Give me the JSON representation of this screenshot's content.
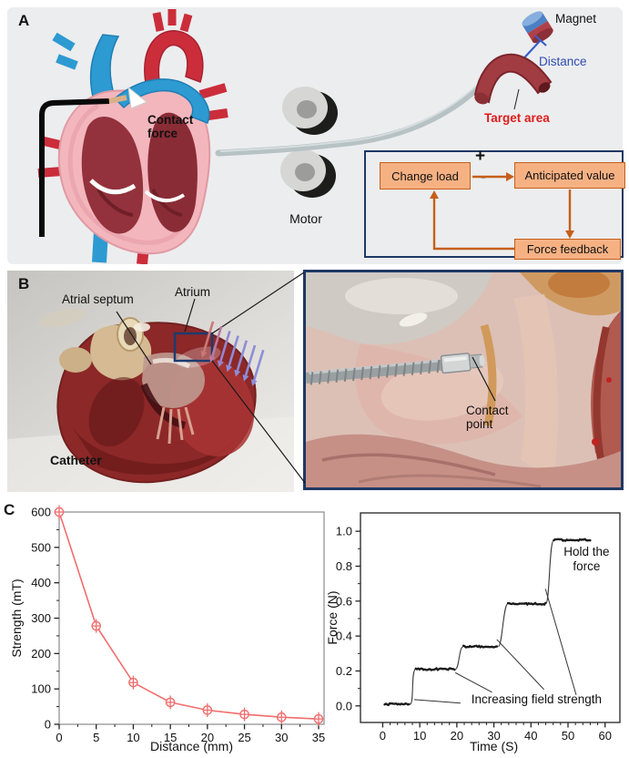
{
  "panels": {
    "a": {
      "label": "A",
      "bg": "#ecedef",
      "contact_force": "Contact\nforce",
      "motor": "Motor",
      "magnet": "Magnet",
      "distance": "Distance",
      "target_area": "Target area",
      "text_blue": "#2e4bb0",
      "text_red": "#e01b1b",
      "flowchart": {
        "change_load": "Change load",
        "plus": "+",
        "minus": "-",
        "anticipated": "Anticipated value",
        "feedback": "Force feedback",
        "box_fill": "#f6b183",
        "box_border": "#c55f1a",
        "frame_border": "#1f3864"
      }
    },
    "b": {
      "label": "B",
      "atrial_septum": "Atrial septum",
      "atrium": "Atrium",
      "catheter": "Catheter",
      "contact_point": "Contact\npoint",
      "highlight_box_color": "#1e3a6e",
      "field_arrows": {
        "count": 7,
        "colors": [
          "#cb7878",
          "#bb7a9e",
          "#9486cf",
          "#8d8dd8",
          "#8d8dd8",
          "#8d8dd8",
          "#8d8dd8"
        ]
      }
    },
    "c": {
      "label": "C"
    }
  },
  "chart_data": [
    {
      "type": "line",
      "xlabel": "Distance (mm)",
      "ylabel": "Strength (mT)",
      "x": [
        0,
        5,
        10,
        15,
        20,
        25,
        30,
        35
      ],
      "y": [
        600,
        278,
        118,
        62,
        40,
        28,
        20,
        15
      ],
      "yerr": [
        15,
        12,
        10,
        8,
        7,
        9,
        7,
        6
      ],
      "xlim": [
        0,
        35
      ],
      "ylim": [
        0,
        600
      ],
      "xticks": [
        0,
        5,
        10,
        15,
        20,
        25,
        30,
        35
      ],
      "yticks": [
        0,
        100,
        200,
        300,
        400,
        500,
        600
      ],
      "color": "#f26d6d",
      "marker": "circle-plus-errorbar",
      "grid": false,
      "legend": "none"
    },
    {
      "type": "line",
      "xlabel": "Time (S)",
      "ylabel": "Force (N)",
      "xlim": [
        -6,
        64
      ],
      "ylim": [
        -0.095,
        1.105
      ],
      "xticks": [
        0,
        10,
        20,
        30,
        40,
        50,
        60
      ],
      "yticks": [
        "0.0",
        "0.2",
        "0.4",
        "0.6",
        "0.8",
        "1.0"
      ],
      "plateaus": [
        {
          "t_start": 0.5,
          "t_end": 7.4,
          "force": 0.01
        },
        {
          "t_start": 8.9,
          "t_end": 19.6,
          "force": 0.21
        },
        {
          "t_start": 21.8,
          "t_end": 31.2,
          "force": 0.34
        },
        {
          "t_start": 33.8,
          "t_end": 44.0,
          "force": 0.585
        },
        {
          "t_start": 46.2,
          "t_end": 56.2,
          "force": 0.95
        }
      ],
      "annotations": [
        {
          "id": "hold-the-force-annotation",
          "lines": [
            "Hold the",
            "force"
          ],
          "x": 55,
          "y": 0.86
        },
        {
          "id": "increasing-field-strength-annotation",
          "lines": [
            "Increasing field strength"
          ],
          "x": 41.5,
          "y": 0.015
        }
      ],
      "leader_lines": [
        [
          8.5,
          0.036,
          21.0,
          0.016
        ],
        [
          19.6,
          0.19,
          29.5,
          0.078
        ],
        [
          30.8,
          0.38,
          43.5,
          0.094
        ],
        [
          43.9,
          0.67,
          52.2,
          0.063
        ]
      ],
      "color": "#1a1a1a",
      "grid": false,
      "legend": "none"
    }
  ]
}
